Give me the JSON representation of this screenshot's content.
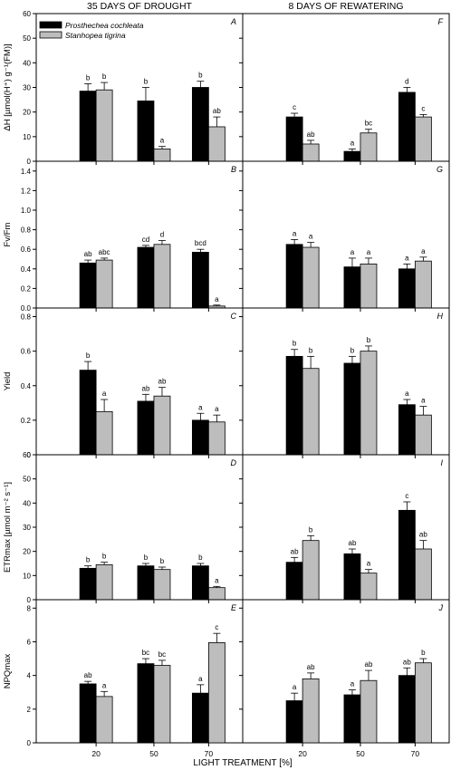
{
  "chart_data": {
    "type": "bar",
    "column_titles": [
      "35 DAYS OF DROUGHT",
      "8 DAYS OF REWATERING"
    ],
    "xlabel": "LIGHT TREATMENT [%]",
    "categories": [
      "20",
      "50",
      "70"
    ],
    "legend": {
      "placement": "top-left",
      "entries": [
        {
          "name": "Prosthechea cochleata",
          "color": "#000000"
        },
        {
          "name": "Stanhopea tigrina",
          "color": "#bdbdbd"
        }
      ]
    },
    "series_colors": [
      "#000000",
      "#bdbdbd"
    ],
    "rows": [
      {
        "ylabel": "ΔH [µmol(H⁺) g⁻¹(FM)]",
        "ylim": [
          0,
          60
        ],
        "yticks": [
          "0",
          "10",
          "20",
          "30",
          "40",
          "50",
          "60"
        ],
        "panels": [
          {
            "label": "A",
            "series": [
              {
                "name": "Prosthechea cochleata",
                "values": [
                  28.5,
                  24.5,
                  30
                ],
                "errors": [
                  3,
                  5.5,
                  2.5
                ],
                "letters": [
                  "b",
                  "b",
                  "b"
                ]
              },
              {
                "name": "Stanhopea tigrina",
                "values": [
                  29,
                  5,
                  14
                ],
                "errors": [
                  3,
                  1,
                  4
                ],
                "letters": [
                  "b",
                  "a",
                  "ab"
                ]
              }
            ]
          },
          {
            "label": "F",
            "series": [
              {
                "name": "Prosthechea cochleata",
                "values": [
                  18,
                  4,
                  28
                ],
                "errors": [
                  1.5,
                  1,
                  2
                ],
                "letters": [
                  "c",
                  "a",
                  "d"
                ]
              },
              {
                "name": "Stanhopea tigrina",
                "values": [
                  7,
                  11.5,
                  18
                ],
                "errors": [
                  1.5,
                  1.5,
                  1
                ],
                "letters": [
                  "ab",
                  "bc",
                  "c"
                ]
              }
            ]
          }
        ]
      },
      {
        "ylabel": "Fv/Fm",
        "ylim": [
          0,
          1.5
        ],
        "yticks": [
          "0.0",
          "0.2",
          "0.4",
          "0.6",
          "0.8",
          "1.0",
          "1.2",
          "1.4"
        ],
        "panels": [
          {
            "label": "B",
            "series": [
              {
                "name": "Prosthechea cochleata",
                "values": [
                  0.46,
                  0.62,
                  0.57
                ],
                "errors": [
                  0.03,
                  0.02,
                  0.03
                ],
                "letters": [
                  "ab",
                  "cd",
                  "bcd"
                ]
              },
              {
                "name": "Stanhopea tigrina",
                "values": [
                  0.49,
                  0.65,
                  0.02
                ],
                "errors": [
                  0.02,
                  0.04,
                  0.01
                ],
                "letters": [
                  "abc",
                  "d",
                  "a"
                ]
              }
            ]
          },
          {
            "label": "G",
            "series": [
              {
                "name": "Prosthechea cochleata",
                "values": [
                  0.65,
                  0.42,
                  0.4
                ],
                "errors": [
                  0.05,
                  0.09,
                  0.05
                ],
                "letters": [
                  "a",
                  "a",
                  "a"
                ]
              },
              {
                "name": "Stanhopea tigrina",
                "values": [
                  0.62,
                  0.45,
                  0.48
                ],
                "errors": [
                  0.05,
                  0.06,
                  0.04
                ],
                "letters": [
                  "a",
                  "a",
                  "a"
                ]
              }
            ]
          }
        ]
      },
      {
        "ylabel": "Yield",
        "ylim": [
          0,
          0.85
        ],
        "yticks": [
          "0",
          "0.2",
          "0.4",
          "0.6",
          "0.8"
        ],
        "panels": [
          {
            "label": "C",
            "series": [
              {
                "name": "Prosthechea cochleata",
                "values": [
                  0.49,
                  0.31,
                  0.2
                ],
                "errors": [
                  0.05,
                  0.04,
                  0.04
                ],
                "letters": [
                  "b",
                  "ab",
                  "a"
                ]
              },
              {
                "name": "Stanhopea tigrina",
                "values": [
                  0.25,
                  0.34,
                  0.19
                ],
                "errors": [
                  0.07,
                  0.05,
                  0.04
                ],
                "letters": [
                  "a",
                  "ab",
                  "a"
                ]
              }
            ]
          },
          {
            "label": "H",
            "series": [
              {
                "name": "Prosthechea cochleata",
                "values": [
                  0.57,
                  0.53,
                  0.29
                ],
                "errors": [
                  0.04,
                  0.04,
                  0.03
                ],
                "letters": [
                  "b",
                  "b",
                  "a"
                ]
              },
              {
                "name": "Stanhopea tigrina",
                "values": [
                  0.5,
                  0.6,
                  0.23
                ],
                "errors": [
                  0.07,
                  0.03,
                  0.05
                ],
                "letters": [
                  "b",
                  "b",
                  "a"
                ]
              }
            ]
          }
        ]
      },
      {
        "ylabel": "ETRmax [µmol m⁻² s⁻¹]",
        "ylim": [
          0,
          60
        ],
        "yticks": [
          "0",
          "10",
          "20",
          "30",
          "40",
          "50",
          "60"
        ],
        "panels": [
          {
            "label": "D",
            "series": [
              {
                "name": "Prosthechea cochleata",
                "values": [
                  13,
                  14,
                  14
                ],
                "errors": [
                  1,
                  1,
                  1
                ],
                "letters": [
                  "b",
                  "b",
                  "b"
                ]
              },
              {
                "name": "Stanhopea tigrina",
                "values": [
                  14.5,
                  12.5,
                  5
                ],
                "errors": [
                  1,
                  1,
                  0.5
                ],
                "letters": [
                  "b",
                  "b",
                  "a"
                ]
              }
            ]
          },
          {
            "label": "I",
            "series": [
              {
                "name": "Prosthechea cochleata",
                "values": [
                  15.5,
                  19,
                  37
                ],
                "errors": [
                  2,
                  2,
                  3.5
                ],
                "letters": [
                  "ab",
                  "ab",
                  "c"
                ]
              },
              {
                "name": "Stanhopea tigrina",
                "values": [
                  24.5,
                  11,
                  21
                ],
                "errors": [
                  2,
                  1.5,
                  3.5
                ],
                "letters": [
                  "b",
                  "a",
                  "ab"
                ]
              }
            ]
          }
        ]
      },
      {
        "ylabel": "NPQmax",
        "ylim": [
          0,
          8.5
        ],
        "yticks": [
          "0",
          "2",
          "4",
          "6",
          "8"
        ],
        "panels": [
          {
            "label": "E",
            "series": [
              {
                "name": "Prosthechea cochleata",
                "values": [
                  3.5,
                  4.7,
                  2.95
                ],
                "errors": [
                  0.15,
                  0.3,
                  0.5
                ],
                "letters": [
                  "ab",
                  "bc",
                  "a"
                ]
              },
              {
                "name": "Stanhopea tigrina",
                "values": [
                  2.75,
                  4.6,
                  5.95
                ],
                "errors": [
                  0.3,
                  0.3,
                  0.55
                ],
                "letters": [
                  "a",
                  "bc",
                  "c"
                ]
              }
            ]
          },
          {
            "label": "J",
            "series": [
              {
                "name": "Prosthechea cochleata",
                "values": [
                  2.5,
                  2.85,
                  4
                ],
                "errors": [
                  0.45,
                  0.3,
                  0.45
                ],
                "letters": [
                  "a",
                  "a",
                  "ab"
                ]
              },
              {
                "name": "Stanhopea tigrina",
                "values": [
                  3.8,
                  3.7,
                  4.75
                ],
                "errors": [
                  0.35,
                  0.6,
                  0.25
                ],
                "letters": [
                  "ab",
                  "ab",
                  "b"
                ]
              }
            ]
          }
        ]
      }
    ]
  }
}
